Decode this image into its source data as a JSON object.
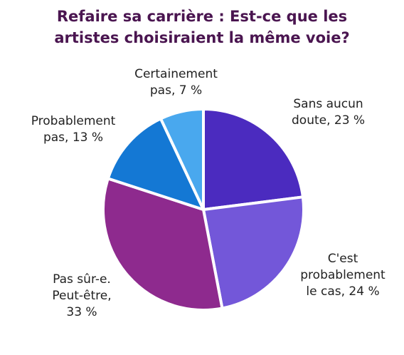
{
  "chart_data": {
    "type": "pie",
    "title_lines": [
      "Refaire sa carrière : Est-ce que les",
      "artistes choisiraient la même voie?"
    ],
    "slices": [
      {
        "label_lines": [
          "Sans aucun",
          "doute, 23 %"
        ],
        "value": 23,
        "color": "#4b2bbf"
      },
      {
        "label_lines": [
          "C'est",
          "probablement",
          "le cas, 24 %"
        ],
        "value": 24,
        "color": "#7357d9"
      },
      {
        "label_lines": [
          "Pas sûr-e.",
          "Peut-être,",
          "33 %"
        ],
        "value": 33,
        "color": "#8e2a8e"
      },
      {
        "label_lines": [
          "Probablement",
          "pas, 13 %"
        ],
        "value": 13,
        "color": "#1478d4"
      },
      {
        "label_lines": [
          "Certainement",
          "pas, 7 %"
        ],
        "value": 7,
        "color": "#49a8ee"
      }
    ]
  }
}
